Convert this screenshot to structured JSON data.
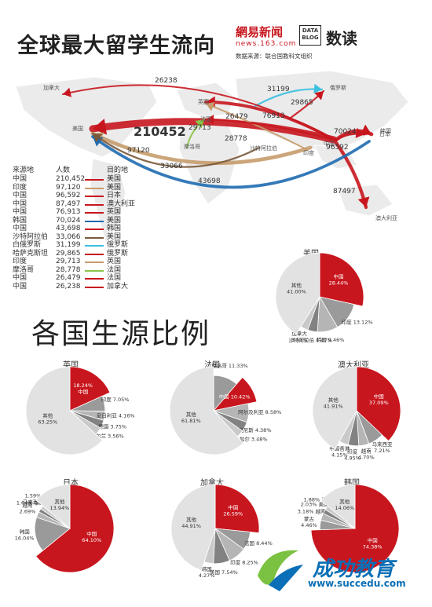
{
  "header": {
    "title": "全球最大留学生流向",
    "brand_netease": "網易新闻",
    "brand_site": "news.163.com",
    "source": "数据来源：联合国教科文组织",
    "data_blog": "DATA BLOG",
    "data_blog_cn": "数读"
  },
  "map": {
    "place_labels": [
      "加拿大",
      "美国",
      "英国",
      "法国",
      "俄罗斯",
      "摩洛哥",
      "沙特阿拉伯",
      "印度",
      "中国",
      "韩国",
      "日本",
      "澳大利亚"
    ]
  },
  "flow_legend": {
    "headers": [
      "来源地",
      "人数",
      "目的地"
    ],
    "rows": [
      {
        "from": "中国",
        "count": "210,452",
        "to": "美国",
        "color": "#c8161e"
      },
      {
        "from": "印度",
        "count": "97,120",
        "to": "美国",
        "color": "#c69c6d"
      },
      {
        "from": "中国",
        "count": "96,592",
        "to": "日本",
        "color": "#c8161e"
      },
      {
        "from": "中国",
        "count": "87,497",
        "to": "澳大利亚",
        "color": "#c8161e"
      },
      {
        "from": "中国",
        "count": "76,913",
        "to": "英国",
        "color": "#c8161e"
      },
      {
        "from": "韩国",
        "count": "70,024",
        "to": "美国",
        "color": "#1f6bb0"
      },
      {
        "from": "中国",
        "count": "43,698",
        "to": "韩国",
        "color": "#c8161e"
      },
      {
        "from": "沙特阿拉伯",
        "count": "33,066",
        "to": "美国",
        "color": "#7a5a3a"
      },
      {
        "from": "白俄罗斯",
        "count": "31,199",
        "to": "俄罗斯",
        "color": "#3cc0e0"
      },
      {
        "from": "哈萨克斯坦",
        "count": "29,865",
        "to": "俄罗斯",
        "color": "#c8161e"
      },
      {
        "from": "印度",
        "count": "29,713",
        "to": "英国",
        "color": "#c69c6d"
      },
      {
        "from": "摩洛哥",
        "count": "28,778",
        "to": "法国",
        "color": "#8bc34a"
      },
      {
        "from": "中国",
        "count": "26,479",
        "to": "法国",
        "color": "#c8161e"
      },
      {
        "from": "中国",
        "count": "26,238",
        "to": "加拿大",
        "color": "#c8161e"
      }
    ]
  },
  "section2_title": "各国生源比例",
  "watermark": {
    "name": "成功教育",
    "url": "www.succedu.com"
  },
  "chart_data": [
    {
      "type": "pie",
      "title": "",
      "annotations": [
        "26238",
        "31199",
        "29865",
        "76913",
        "26479",
        "29713",
        "28778",
        "210452",
        "97120",
        "33066",
        "70024",
        "43698",
        "96592",
        "87497"
      ],
      "series": [
        {
          "from": "中国",
          "to": "美国",
          "value": 210452
        },
        {
          "from": "印度",
          "to": "美国",
          "value": 97120
        },
        {
          "from": "中国",
          "to": "日本",
          "value": 96592
        },
        {
          "from": "中国",
          "to": "澳大利亚",
          "value": 87497
        },
        {
          "from": "中国",
          "to": "英国",
          "value": 76913
        },
        {
          "from": "韩国",
          "to": "美国",
          "value": 70024
        },
        {
          "from": "中国",
          "to": "韩国",
          "value": 43698
        },
        {
          "from": "沙特阿拉伯",
          "to": "美国",
          "value": 33066
        },
        {
          "from": "白俄罗斯",
          "to": "俄罗斯",
          "value": 31199
        },
        {
          "from": "哈萨克斯坦",
          "to": "俄罗斯",
          "value": 29865
        },
        {
          "from": "印度",
          "to": "英国",
          "value": 29713
        },
        {
          "from": "摩洛哥",
          "to": "法国",
          "value": 28778
        },
        {
          "from": "中国",
          "to": "法国",
          "value": 26479
        },
        {
          "from": "中国",
          "to": "加拿大",
          "value": 26238
        }
      ]
    },
    {
      "type": "pie",
      "title": "美国",
      "slices": [
        {
          "label": "中国",
          "value": 28.44,
          "text": "中国\n28.44%",
          "color": "#c8161e"
        },
        {
          "label": "印度",
          "value": 13.12,
          "text": "印度 13.12%",
          "color": "#9a9a9a"
        },
        {
          "label": "韩国",
          "value": 9.46,
          "text": "韩国 9.46%",
          "color": "#b5b5b5"
        },
        {
          "label": "沙特阿拉伯",
          "value": 4.47,
          "text": "沙特阿拉伯 4.47%",
          "color": "#828282"
        },
        {
          "label": "加拿大",
          "value": 3.51,
          "text": "加拿大\n3.51%",
          "color": "#c9c9c9"
        },
        {
          "label": "其他",
          "value": 41.0,
          "text": "其他\n41.00%",
          "color": "#e2e2e2"
        }
      ]
    },
    {
      "type": "pie",
      "title": "英国",
      "slices": [
        {
          "label": "中国",
          "value": 18.24,
          "text": "18.24%\n中国",
          "color": "#c8161e"
        },
        {
          "label": "印度",
          "value": 7.05,
          "text": "印度 7.05%",
          "color": "#9a9a9a"
        },
        {
          "label": "尼日利亚",
          "value": 4.16,
          "text": "尼日利亚 4.16%",
          "color": "#b5b5b5"
        },
        {
          "label": "德国",
          "value": 3.75,
          "text": "德国 3.75%",
          "color": "#828282"
        },
        {
          "label": "爱尔兰",
          "value": 3.56,
          "text": "爱尔兰 3.56%",
          "color": "#c9c9c9"
        },
        {
          "label": "其他",
          "value": 63.25,
          "text": "其他\n63.25%",
          "color": "#e2e2e2"
        }
      ]
    },
    {
      "type": "pie",
      "title": "法国",
      "slices": [
        {
          "label": "摩洛哥",
          "value": 11.33,
          "text": "摩洛哥 11.33%",
          "color": "#9a9a9a"
        },
        {
          "label": "中国",
          "value": 10.42,
          "text": "中国 10.42%",
          "color": "#c8161e"
        },
        {
          "label": "阿尔及利亚",
          "value": 8.58,
          "text": "阿尔及利亚 8.58%",
          "color": "#b5b5b5"
        },
        {
          "label": "突尼斯",
          "value": 4.38,
          "text": "突尼斯 4.38%",
          "color": "#828282"
        },
        {
          "label": "塞内加尔",
          "value": 3.48,
          "text": "塞内加尔 3.48%",
          "color": "#c9c9c9"
        },
        {
          "label": "其他",
          "value": 61.81,
          "text": "其他\n61.81%",
          "color": "#e2e2e2"
        }
      ]
    },
    {
      "type": "pie",
      "title": "澳大利亚",
      "slices": [
        {
          "label": "中国",
          "value": 37.09,
          "text": "中国\n37.09%",
          "color": "#c8161e"
        },
        {
          "label": "马来西亚",
          "value": 7.21,
          "text": "马来西亚\n7.21%",
          "color": "#9a9a9a"
        },
        {
          "label": "越南",
          "value": 4.7,
          "text": "越南\n4.70%",
          "color": "#b5b5b5"
        },
        {
          "label": "印度",
          "value": 4.95,
          "text": "印度\n4.95%",
          "color": "#828282"
        },
        {
          "label": "中国香港",
          "value": 4.15,
          "text": "中国香港\n4.15%",
          "color": "#c9c9c9"
        },
        {
          "label": "其他",
          "value": 41.91,
          "text": "其他\n41.91%",
          "color": "#e2e2e2"
        }
      ]
    },
    {
      "type": "pie",
      "title": "日本",
      "slices": [
        {
          "label": "中国",
          "value": 64.1,
          "text": "中国\n64.10%",
          "color": "#c8161e"
        },
        {
          "label": "韩国",
          "value": 16.04,
          "text": "韩国\n16.04%",
          "color": "#9a9a9a"
        },
        {
          "label": "越南",
          "value": 2.69,
          "text": "越南\n2.69%",
          "color": "#b5b5b5"
        },
        {
          "label": "泰国",
          "value": 1.64,
          "text": "1.64% 泰国",
          "color": "#828282"
        },
        {
          "label": "马来西亚",
          "value": 1.59,
          "text": "1.59%\n马来西亚",
          "color": "#c9c9c9"
        },
        {
          "label": "其他",
          "value": 13.94,
          "text": "其他\n13.94%",
          "color": "#e2e2e2"
        }
      ]
    },
    {
      "type": "pie",
      "title": "加拿大",
      "slices": [
        {
          "label": "中国",
          "value": 26.59,
          "text": "中国\n26.59%",
          "color": "#c8161e"
        },
        {
          "label": "法国",
          "value": 8.44,
          "text": "法国 8.44%",
          "color": "#9a9a9a"
        },
        {
          "label": "印度",
          "value": 8.25,
          "text": "印度 8.25%",
          "color": "#b5b5b5"
        },
        {
          "label": "美国",
          "value": 7.54,
          "text": "美国 7.54%",
          "color": "#828282"
        },
        {
          "label": "韩国",
          "value": 4.27,
          "text": "韩国\n4.27%",
          "color": "#c9c9c9"
        },
        {
          "label": "其他",
          "value": 44.91,
          "text": "其他\n44.91%",
          "color": "#e2e2e2"
        }
      ]
    },
    {
      "type": "pie",
      "title": "韩国",
      "slices": [
        {
          "label": "中国",
          "value": 74.38,
          "text": "中国\n74.38%",
          "color": "#c8161e"
        },
        {
          "label": "蒙古",
          "value": 4.46,
          "text": "蒙古\n4.46%",
          "color": "#9a9a9a"
        },
        {
          "label": "越南",
          "value": 3.18,
          "text": "3.18% 越南",
          "color": "#b5b5b5"
        },
        {
          "label": "美国",
          "value": 2.03,
          "text": "2.03% 美国",
          "color": "#828282"
        },
        {
          "label": "日本",
          "value": 1.88,
          "text": "1.88% 日本",
          "color": "#c9c9c9"
        },
        {
          "label": "其他",
          "value": 14.06,
          "text": "其他\n14.06%",
          "color": "#e2e2e2"
        }
      ]
    }
  ]
}
